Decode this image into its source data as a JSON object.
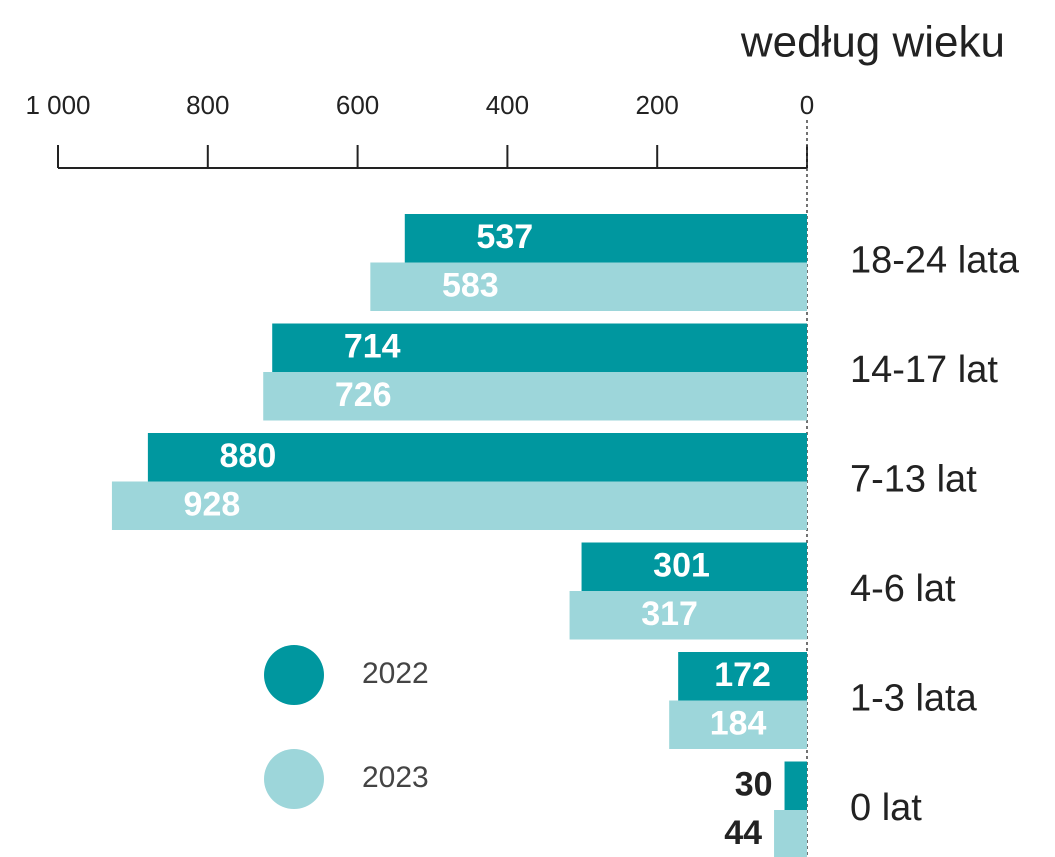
{
  "chart_data": {
    "type": "bar",
    "orientation": "horizontal",
    "x_reversed": true,
    "title": "według wieku",
    "categories": [
      "18-24 lata",
      "14-17 lat",
      "7-13 lat",
      "4-6 lat",
      "1-3 lata",
      "0 lat"
    ],
    "series": [
      {
        "name": "2022",
        "color": "#00979f",
        "values": [
          537,
          714,
          880,
          301,
          172,
          30
        ]
      },
      {
        "name": "2023",
        "color": "#9dd6da",
        "values": [
          583,
          726,
          928,
          317,
          184,
          44
        ]
      }
    ],
    "xlim": [
      0,
      1000
    ],
    "xticks": [
      0,
      200,
      400,
      600,
      800,
      {
        "value": 1000,
        "label": "1 000"
      }
    ],
    "legend": "lower left"
  }
}
